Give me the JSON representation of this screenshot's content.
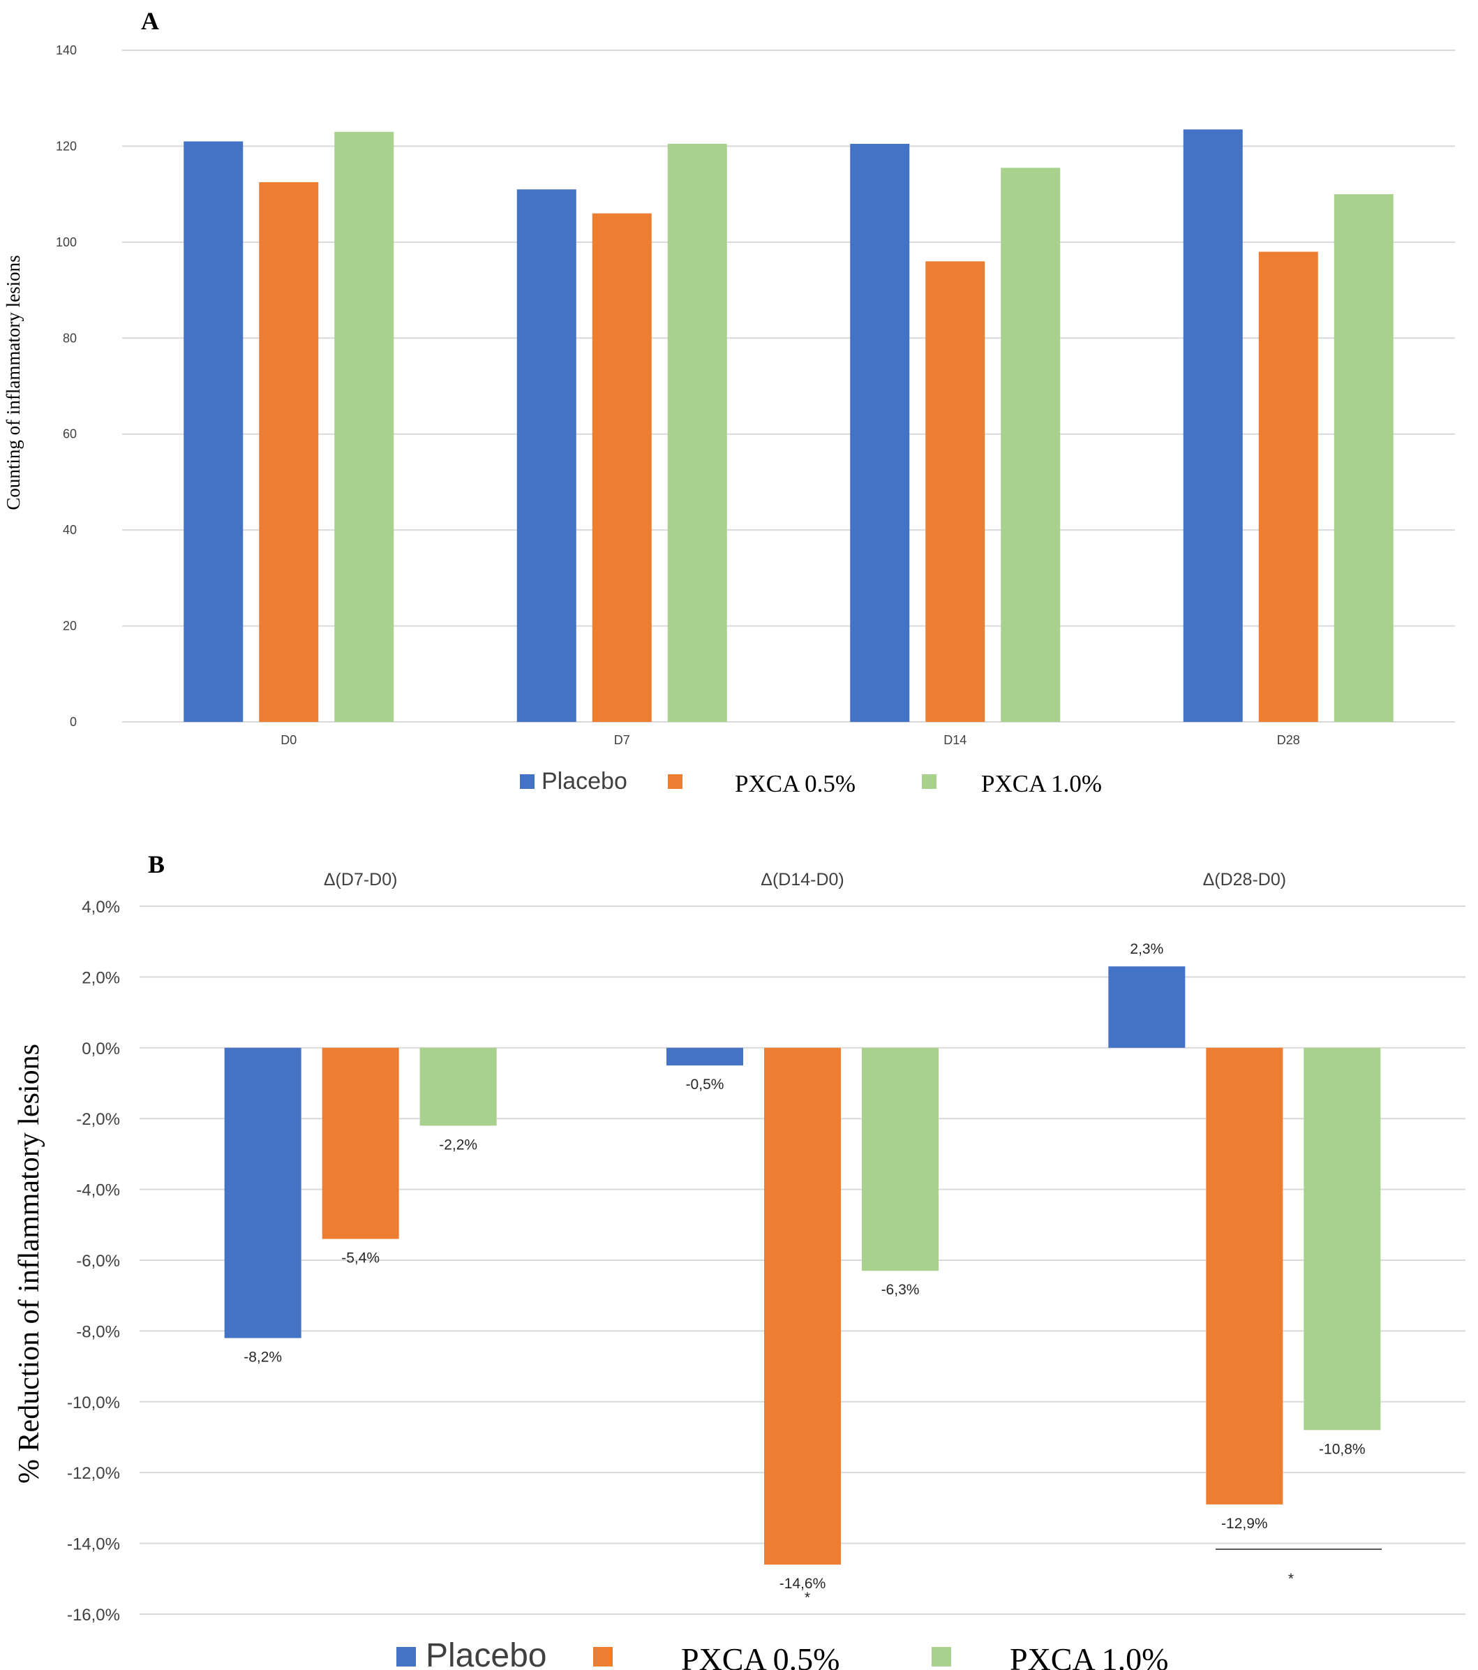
{
  "colors": {
    "placebo": "#4472C4",
    "pxca05": "#ED7D31",
    "pxca10": "#A9D18E"
  },
  "chart_data": [
    {
      "panel": "A",
      "type": "bar",
      "ylabel": "Counting of inflammatory lesions",
      "ylim": [
        0,
        140
      ],
      "yticks": [
        "0",
        "20",
        "40",
        "60",
        "80",
        "100",
        "120",
        "140"
      ],
      "categories": [
        "D0",
        "D7",
        "D14",
        "D28"
      ],
      "series": [
        {
          "name": "Placebo",
          "values": [
            121,
            111,
            120.5,
            123.5
          ]
        },
        {
          "name": "PXCA 0.5%",
          "values": [
            112.5,
            106,
            96,
            98
          ]
        },
        {
          "name": "PXCA 1.0%",
          "values": [
            123,
            120.5,
            115.5,
            110
          ]
        }
      ],
      "legend": [
        "Placebo",
        "PXCA 0.5%",
        "PXCA 1.0%"
      ]
    },
    {
      "panel": "B",
      "type": "bar",
      "ylabel": "% Reduction of inflammatory lesions",
      "ylim": [
        -16,
        4
      ],
      "yticks": [
        "4,0%",
        "2,0%",
        "0,0%",
        "-2,0%",
        "-4,0%",
        "-6,0%",
        "-8,0%",
        "-10,0%",
        "-12,0%",
        "-14,0%",
        "-16,0%"
      ],
      "categories": [
        "Δ(D7-D0)",
        "Δ(D14-D0)",
        "Δ(D28-D0)"
      ],
      "series": [
        {
          "name": "Placebo",
          "values": [
            -8.2,
            -0.5,
            2.3
          ],
          "labels": [
            "-8,2%",
            "-0,5%",
            "2,3%"
          ]
        },
        {
          "name": "PXCA 0.5%",
          "values": [
            -5.4,
            -14.6,
            -12.9
          ],
          "labels": [
            "-5,4%",
            "-14,6%",
            "-12,9%"
          ]
        },
        {
          "name": "PXCA 1.0%",
          "values": [
            -2.2,
            -6.3,
            -10.8
          ],
          "labels": [
            "-2,2%",
            "-6,3%",
            "-10,8%"
          ]
        }
      ],
      "annotations": [
        "*",
        "*"
      ],
      "legend": [
        "Placebo",
        "PXCA 0.5%",
        "PXCA 1.0%"
      ]
    }
  ]
}
